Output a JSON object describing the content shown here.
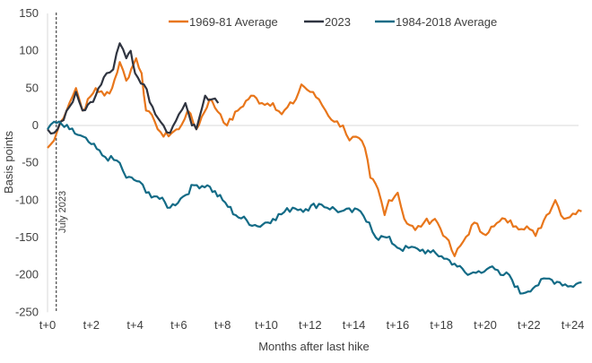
{
  "chart_data": {
    "type": "line",
    "title": "",
    "xlabel": "Months after last hike",
    "ylabel": "Basis points",
    "xlim": [
      0,
      24.4
    ],
    "ylim": [
      -250,
      150
    ],
    "yticks": [
      150,
      100,
      50,
      0,
      -50,
      -100,
      -150,
      -200,
      -250
    ],
    "xticks": [
      {
        "value": 0,
        "label": "t+0"
      },
      {
        "value": 2,
        "label": "t+2"
      },
      {
        "value": 4,
        "label": "t+4"
      },
      {
        "value": 6,
        "label": "t+6"
      },
      {
        "value": 8,
        "label": "t+8"
      },
      {
        "value": 10,
        "label": "t+10"
      },
      {
        "value": 12,
        "label": "t+12"
      },
      {
        "value": 14,
        "label": "t+14"
      },
      {
        "value": 16,
        "label": "t+16"
      },
      {
        "value": 18,
        "label": "t+18"
      },
      {
        "value": 20,
        "label": "t+20"
      },
      {
        "value": 22,
        "label": "t+22"
      },
      {
        "value": 24,
        "label": "t+24"
      }
    ],
    "grid": false,
    "legend_position": "top",
    "annotation": {
      "label": "July 2023",
      "x": 0.4,
      "style": "dashed-vertical"
    },
    "series": [
      {
        "name": "1969-81 Average",
        "color": "#E8761B",
        "points": [
          [
            0,
            -30
          ],
          [
            0.3,
            -20
          ],
          [
            0.6,
            5
          ],
          [
            1.0,
            30
          ],
          [
            1.3,
            50
          ],
          [
            1.6,
            20
          ],
          [
            2.2,
            50
          ],
          [
            2.6,
            40
          ],
          [
            2.95,
            50
          ],
          [
            3.3,
            85
          ],
          [
            3.6,
            60
          ],
          [
            4.05,
            90
          ],
          [
            4.3,
            70
          ],
          [
            4.5,
            20
          ],
          [
            4.9,
            5
          ],
          [
            5.3,
            -15
          ],
          [
            6.0,
            -5
          ],
          [
            6.4,
            20
          ],
          [
            6.8,
            -5
          ],
          [
            7.4,
            35
          ],
          [
            7.9,
            15
          ],
          [
            8.2,
            0
          ],
          [
            8.7,
            20
          ],
          [
            9.3,
            40
          ],
          [
            9.8,
            30
          ],
          [
            10.3,
            30
          ],
          [
            10.7,
            15
          ],
          [
            11.35,
            35
          ],
          [
            11.6,
            55
          ],
          [
            12.0,
            45
          ],
          [
            12.4,
            35
          ],
          [
            12.7,
            20
          ],
          [
            13.1,
            5
          ],
          [
            13.5,
            0
          ],
          [
            13.8,
            -20
          ],
          [
            14.1,
            -15
          ],
          [
            14.5,
            -30
          ],
          [
            14.75,
            -70
          ],
          [
            15.1,
            -85
          ],
          [
            15.4,
            -120
          ],
          [
            15.6,
            -100
          ],
          [
            16.0,
            -90
          ],
          [
            16.3,
            -125
          ],
          [
            16.8,
            -140
          ],
          [
            17.2,
            -130
          ],
          [
            17.7,
            -125
          ],
          [
            18.2,
            -150
          ],
          [
            18.6,
            -175
          ],
          [
            19.0,
            -155
          ],
          [
            19.5,
            -130
          ],
          [
            19.9,
            -145
          ],
          [
            20.4,
            -135
          ],
          [
            20.9,
            -125
          ],
          [
            21.4,
            -135
          ],
          [
            21.9,
            -135
          ],
          [
            22.3,
            -148
          ],
          [
            22.8,
            -120
          ],
          [
            23.2,
            -100
          ],
          [
            23.6,
            -125
          ],
          [
            24.0,
            -118
          ],
          [
            24.4,
            -115
          ]
        ]
      },
      {
        "name": "2023",
        "color": "#2F3440",
        "points": [
          [
            0,
            -5
          ],
          [
            0.3,
            -10
          ],
          [
            0.6,
            5
          ],
          [
            1.0,
            25
          ],
          [
            1.3,
            45
          ],
          [
            1.6,
            20
          ],
          [
            2.2,
            40
          ],
          [
            2.7,
            70
          ],
          [
            3.0,
            75
          ],
          [
            3.3,
            110
          ],
          [
            3.6,
            90
          ],
          [
            3.8,
            100
          ],
          [
            4.0,
            70
          ],
          [
            4.4,
            55
          ],
          [
            4.8,
            25
          ],
          [
            5.3,
            0
          ],
          [
            5.6,
            -10
          ],
          [
            6.0,
            15
          ],
          [
            6.3,
            30
          ],
          [
            6.6,
            0
          ],
          [
            6.8,
            -5
          ],
          [
            7.2,
            40
          ],
          [
            7.5,
            35
          ],
          [
            7.8,
            30
          ]
        ]
      },
      {
        "name": "1984-2018 Average",
        "color": "#136B86",
        "points": [
          [
            0,
            -5
          ],
          [
            0.3,
            5
          ],
          [
            1.0,
            -5
          ],
          [
            2.0,
            -25
          ],
          [
            2.5,
            -40
          ],
          [
            3.3,
            -50
          ],
          [
            3.6,
            -70
          ],
          [
            4.2,
            -75
          ],
          [
            4.5,
            -90
          ],
          [
            5.0,
            -95
          ],
          [
            5.6,
            -110
          ],
          [
            6.2,
            -95
          ],
          [
            6.7,
            -80
          ],
          [
            7.3,
            -80
          ],
          [
            8.0,
            -100
          ],
          [
            8.6,
            -120
          ],
          [
            9.6,
            -135
          ],
          [
            10.3,
            -125
          ],
          [
            11.2,
            -110
          ],
          [
            11.8,
            -112
          ],
          [
            12.4,
            -105
          ],
          [
            13.4,
            -115
          ],
          [
            14.3,
            -115
          ],
          [
            14.7,
            -130
          ],
          [
            15.0,
            -150
          ],
          [
            15.5,
            -150
          ],
          [
            16.1,
            -165
          ],
          [
            16.9,
            -165
          ],
          [
            17.5,
            -170
          ],
          [
            18.0,
            -175
          ],
          [
            18.6,
            -185
          ],
          [
            19.2,
            -200
          ],
          [
            19.7,
            -195
          ],
          [
            20.2,
            -190
          ],
          [
            20.7,
            -200
          ],
          [
            21.1,
            -200
          ],
          [
            21.6,
            -225
          ],
          [
            22.3,
            -215
          ],
          [
            22.8,
            -205
          ],
          [
            23.4,
            -210
          ],
          [
            23.9,
            -215
          ],
          [
            24.4,
            -210
          ]
        ]
      }
    ]
  }
}
